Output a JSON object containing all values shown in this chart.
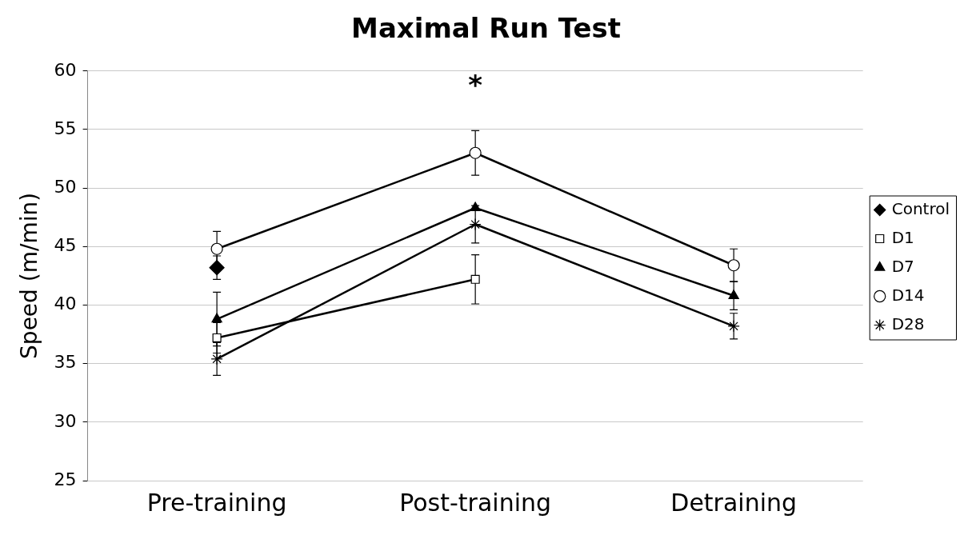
{
  "chart_data": {
    "type": "line",
    "title": "Maximal Run Test",
    "ylabel": "Speed (m/min)",
    "categories": [
      "Pre-training",
      "Post-training",
      "Detraining"
    ],
    "series": [
      {
        "name": "Control",
        "color": "#000000",
        "marker": "diamond",
        "values": [
          43.2,
          null,
          null
        ],
        "errors": [
          1.0,
          null,
          null
        ]
      },
      {
        "name": "D1",
        "color": "#000000",
        "marker": "square",
        "values": [
          37.2,
          42.2,
          null
        ],
        "errors": [
          1.3,
          2.1,
          null
        ]
      },
      {
        "name": "D7",
        "color": "#000000",
        "marker": "triangle",
        "values": [
          38.8,
          48.3,
          40.8
        ],
        "errors": [
          2.3,
          null,
          1.2
        ]
      },
      {
        "name": "D14",
        "color": "#000000",
        "marker": "circle",
        "values": [
          44.8,
          53.0,
          43.4
        ],
        "errors": [
          1.5,
          1.9,
          1.4
        ]
      },
      {
        "name": "D28",
        "color": "#000000",
        "marker": "cross",
        "values": [
          35.4,
          46.9,
          38.2
        ],
        "errors": [
          1.4,
          1.6,
          1.1
        ]
      }
    ],
    "ylim": [
      25,
      60
    ],
    "yticks": [
      25,
      30,
      35,
      40,
      45,
      50,
      55,
      60
    ],
    "grid": "y",
    "legend": "right",
    "line_style": "solid",
    "annotations": [
      "*"
    ]
  }
}
